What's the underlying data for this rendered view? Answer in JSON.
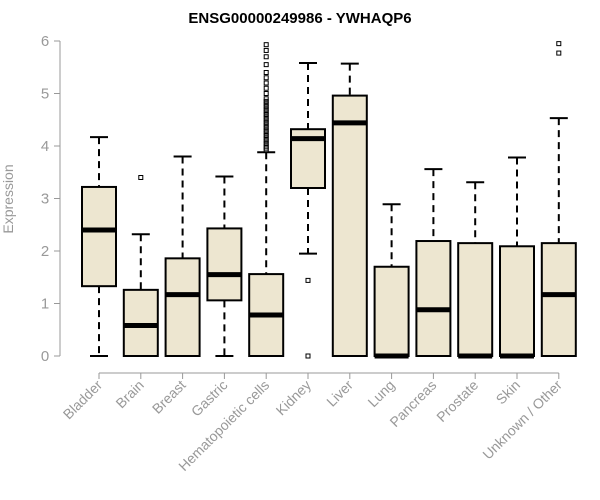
{
  "chart_data": {
    "type": "boxplot",
    "title": "ENSG00000249986 - YWHAQP6",
    "xlabel": "",
    "ylabel": "Expression",
    "ylim": [
      0,
      6
    ],
    "yticks": [
      0,
      1,
      2,
      3,
      4,
      5,
      6
    ],
    "grid": false,
    "box_color": "#ede6d0",
    "categories": [
      "Bladder",
      "Brain",
      "Breast",
      "Gastric",
      "Hematopoietic cells",
      "Kidney",
      "Liver",
      "Lung",
      "Pancreas",
      "Prostate",
      "Skin",
      "Unknown / Other"
    ],
    "boxes": [
      {
        "whisker_low": 0,
        "q1": 1.33,
        "median": 2.4,
        "q3": 3.22,
        "whisker_high": 4.17,
        "outliers": []
      },
      {
        "whisker_low": 0,
        "q1": 0,
        "median": 0.58,
        "q3": 1.26,
        "whisker_high": 2.32,
        "outliers": [
          3.4
        ]
      },
      {
        "whisker_low": 0,
        "q1": 0,
        "median": 1.17,
        "q3": 1.86,
        "whisker_high": 3.8,
        "outliers": []
      },
      {
        "whisker_low": 0,
        "q1": 1.06,
        "median": 1.55,
        "q3": 2.43,
        "whisker_high": 3.42,
        "outliers": []
      },
      {
        "whisker_low": 0,
        "q1": 0,
        "median": 0.78,
        "q3": 1.56,
        "whisker_high": 3.88,
        "outliers": [
          3.92,
          3.96,
          4.0,
          4.05,
          4.1,
          4.15,
          4.2,
          4.25,
          4.3,
          4.35,
          4.4,
          4.45,
          4.5,
          4.55,
          4.6,
          4.65,
          4.7,
          4.75,
          4.8,
          4.85,
          4.9,
          5.0,
          5.1,
          5.2,
          5.3,
          5.4,
          5.55,
          5.7,
          5.82,
          5.93
        ]
      },
      {
        "whisker_low": 1.95,
        "q1": 3.2,
        "median": 4.14,
        "q3": 4.32,
        "whisker_high": 5.58,
        "outliers": [
          1.44,
          0
        ]
      },
      {
        "whisker_low": 0,
        "q1": 0,
        "median": 4.44,
        "q3": 4.96,
        "whisker_high": 5.57,
        "outliers": []
      },
      {
        "whisker_low": 0,
        "q1": 0,
        "median": 0,
        "q3": 1.7,
        "whisker_high": 2.89,
        "outliers": []
      },
      {
        "whisker_low": 0,
        "q1": 0,
        "median": 0.88,
        "q3": 2.19,
        "whisker_high": 3.56,
        "outliers": []
      },
      {
        "whisker_low": 0,
        "q1": 0,
        "median": 0,
        "q3": 2.15,
        "whisker_high": 3.31,
        "outliers": []
      },
      {
        "whisker_low": 0,
        "q1": 0,
        "median": 0,
        "q3": 2.09,
        "whisker_high": 3.78,
        "outliers": []
      },
      {
        "whisker_low": 0,
        "q1": 0,
        "median": 1.17,
        "q3": 2.15,
        "whisker_high": 4.53,
        "outliers": [
          5.77,
          5.95
        ]
      }
    ]
  }
}
